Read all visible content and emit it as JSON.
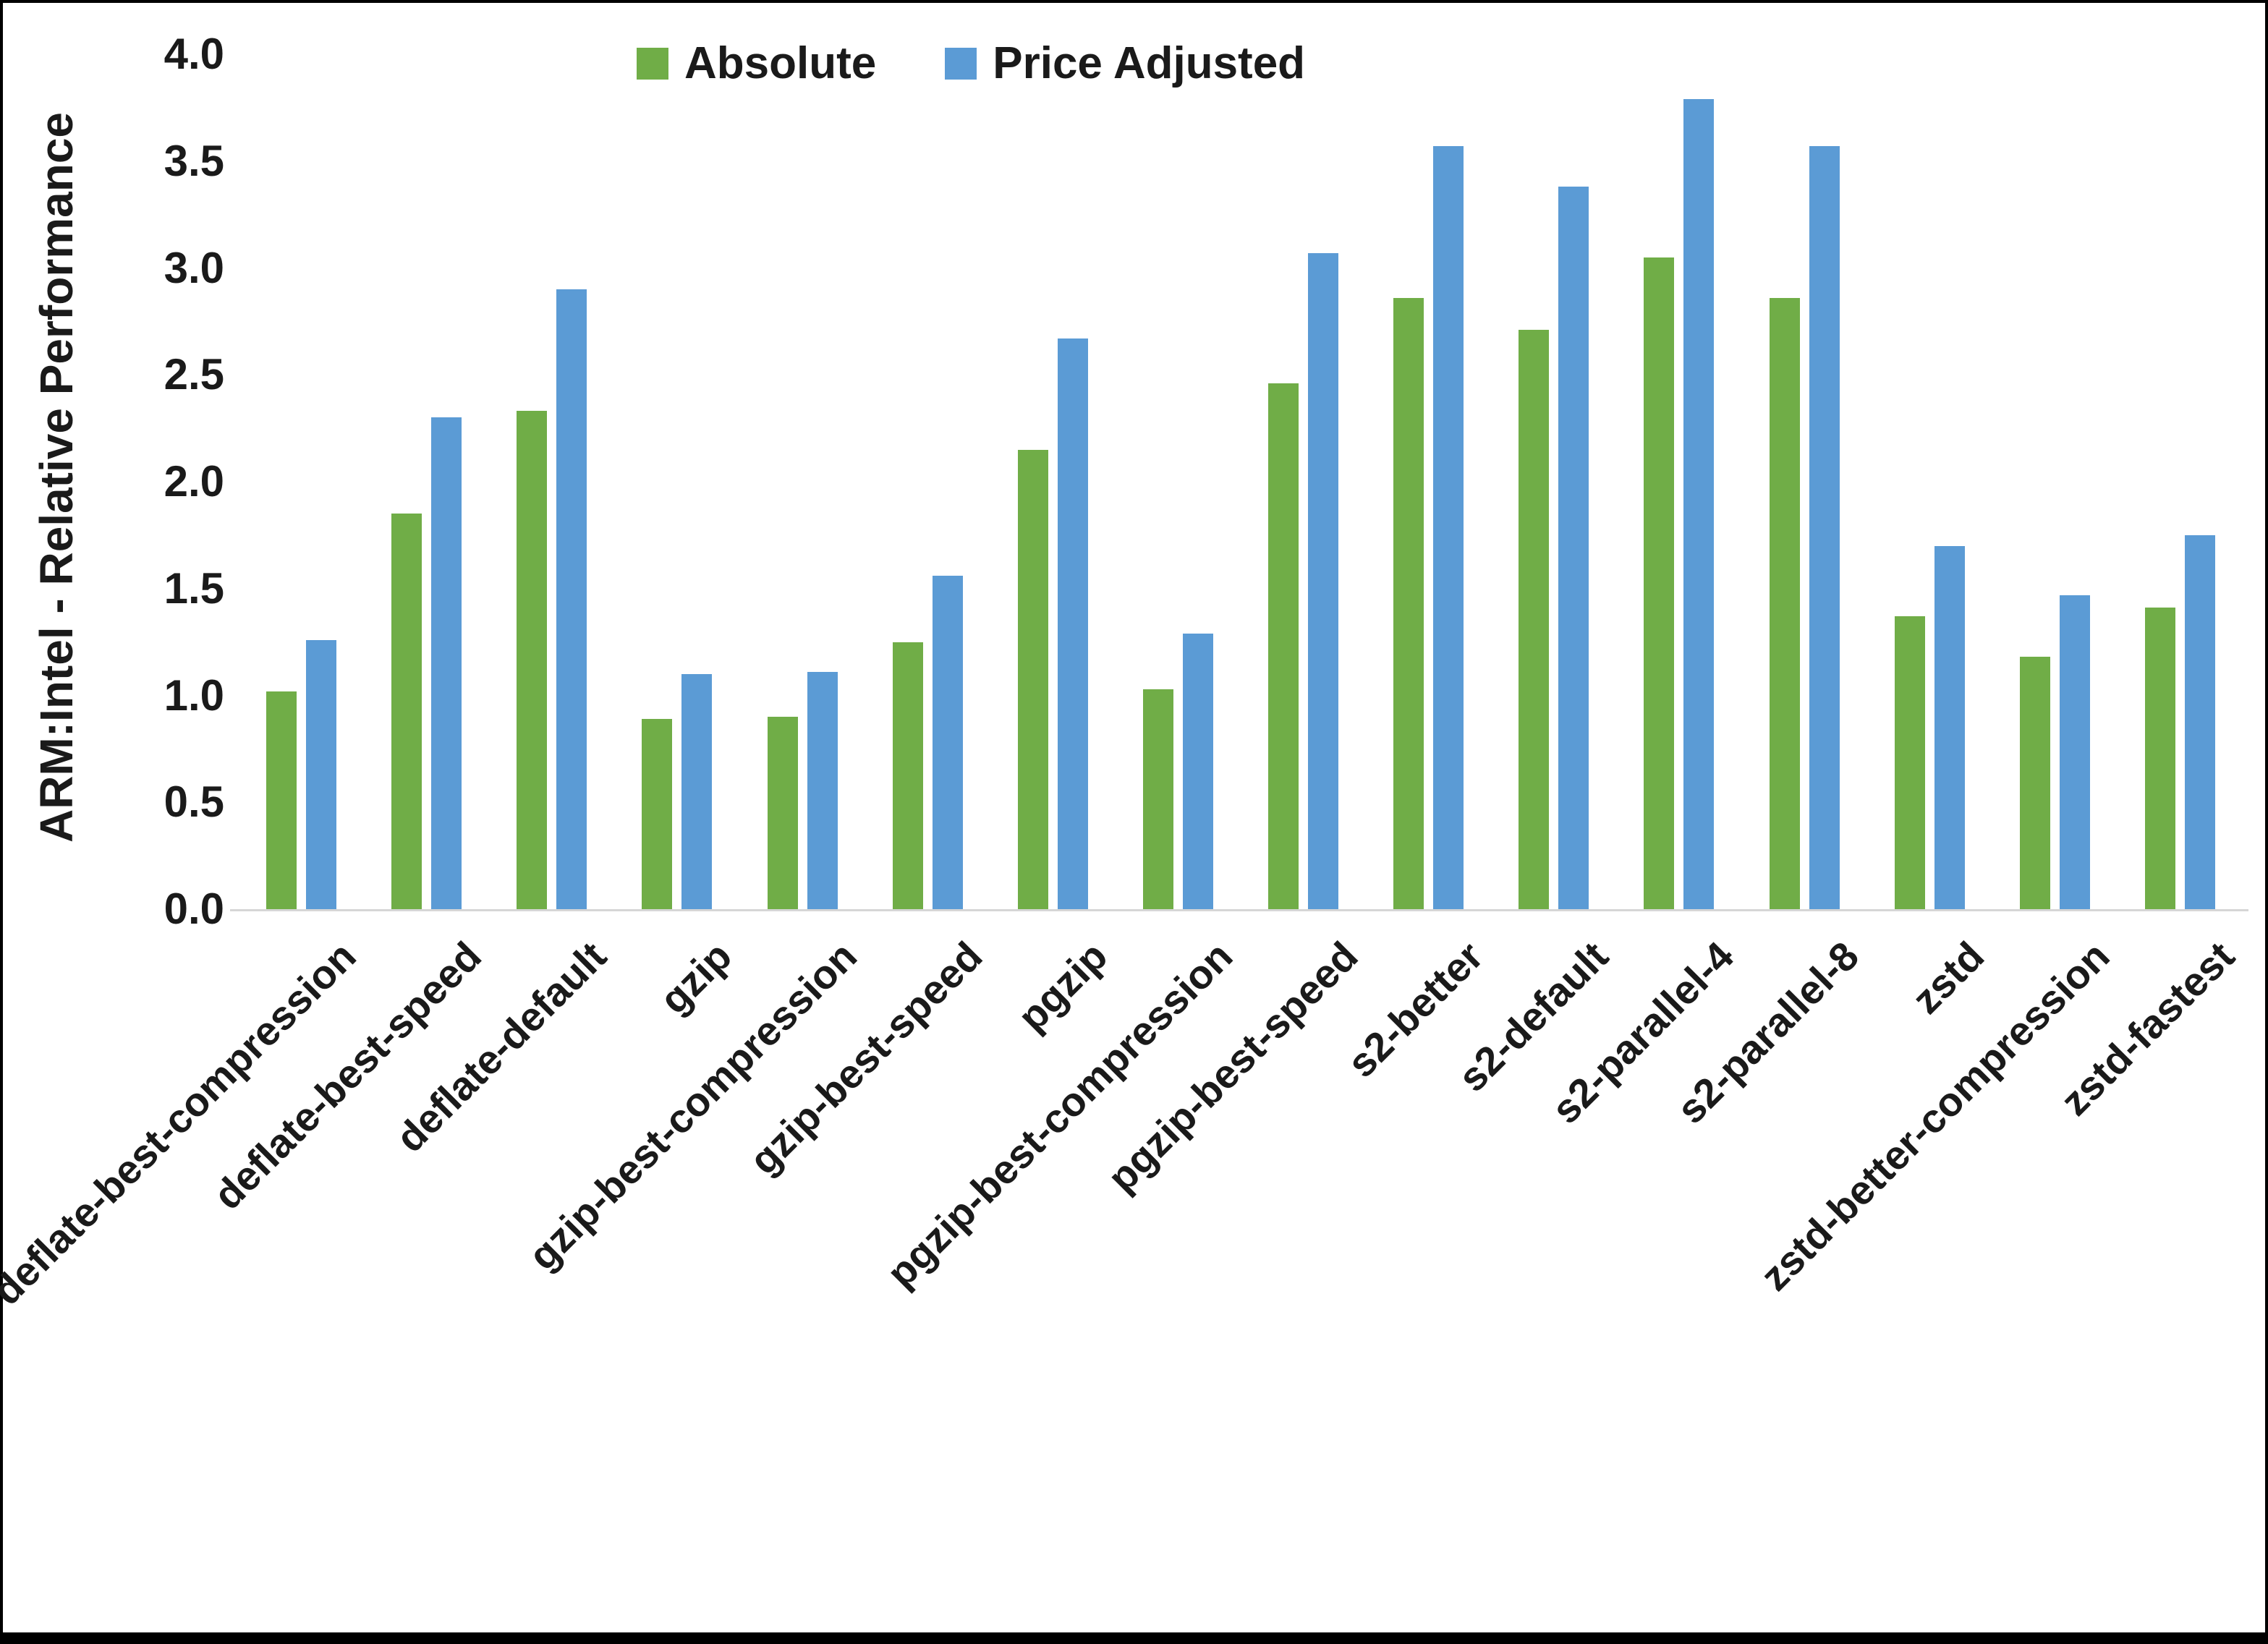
{
  "chart_data": {
    "type": "bar",
    "title": "",
    "xlabel": "",
    "ylabel": "ARM:Intel - Relative Performance",
    "ylim": [
      0.0,
      4.0
    ],
    "ytick_step": 0.5,
    "yticks": [
      "0.0",
      "0.5",
      "1.0",
      "1.5",
      "2.0",
      "2.5",
      "3.0",
      "3.5",
      "4.0"
    ],
    "grid": false,
    "legend_position": "top",
    "categories": [
      "deflate-best-compression",
      "deflate-best-speed",
      "deflate-default",
      "gzip",
      "gzip-best-compression",
      "gzip-best-speed",
      "pgzip",
      "pgzip-best-compression",
      "pgzip-best-speed",
      "s2-better",
      "s2-default",
      "s2-parallel-4",
      "s2-parallel-8",
      "zstd",
      "zstd-better-compression",
      "zstd-fastest"
    ],
    "series": [
      {
        "name": "Absolute",
        "color": "#70AD47",
        "values": [
          1.02,
          1.85,
          2.33,
          0.89,
          0.9,
          1.25,
          2.15,
          1.03,
          2.46,
          2.86,
          2.71,
          3.05,
          2.86,
          1.37,
          1.18,
          1.41
        ]
      },
      {
        "name": "Price Adjusted",
        "color": "#5B9BD5",
        "values": [
          1.26,
          2.3,
          2.9,
          1.1,
          1.11,
          1.56,
          2.67,
          1.29,
          3.07,
          3.57,
          3.38,
          3.79,
          3.57,
          1.7,
          1.47,
          1.75
        ]
      }
    ]
  }
}
